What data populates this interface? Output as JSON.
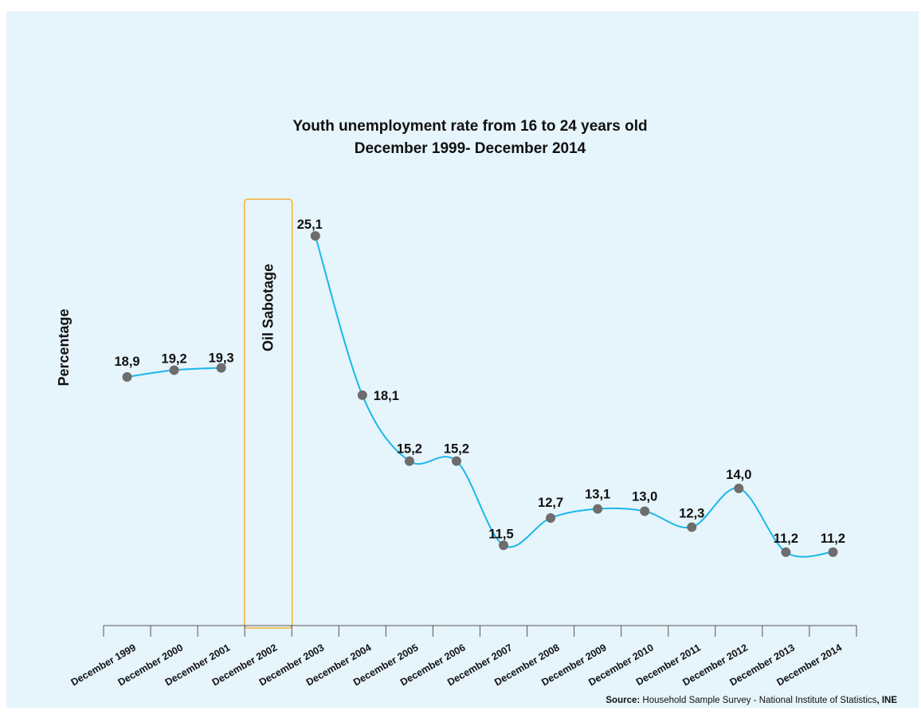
{
  "chart_data": {
    "type": "line",
    "title_line1": "Youth unemployment rate from 16 to 24 years old",
    "title_line2": "December 1999- December 2014",
    "ylabel": "Percentage",
    "categories": [
      "December 1999",
      "December 2000",
      "December 2001",
      "December 2002",
      "December 2003",
      "December 2004",
      "December 2005",
      "December 2006",
      "December 2007",
      "December 2008",
      "December 2009",
      "December 2010",
      "December 2011",
      "December 2012",
      "December 2013",
      "December 2014"
    ],
    "series": [
      {
        "values": [
          18.9,
          19.2,
          19.3,
          null,
          25.1,
          18.1,
          15.2,
          15.2,
          11.5,
          12.7,
          13.1,
          13.0,
          12.3,
          14.0,
          11.2,
          11.2
        ]
      }
    ],
    "data_labels": [
      "18,9",
      "19,2",
      "19,3",
      "",
      "25,1",
      "18,1",
      "15,2",
      "15,2",
      "11,5",
      "12,7",
      "13,1",
      "13,0",
      "12,3",
      "14,0",
      "11,2",
      "11,2"
    ],
    "annotation": {
      "text": "Oil Sabotage",
      "category": "December 2002"
    },
    "source_bold": "Source:",
    "source_text": " Household Sample Survey - National Institute of Statistics",
    "source_suffix": ", INE",
    "colors": {
      "line": "#1ab8e8",
      "marker": "#6d6d6d",
      "annotation_border": "#f2b233",
      "background": "#e6f4fb"
    }
  }
}
